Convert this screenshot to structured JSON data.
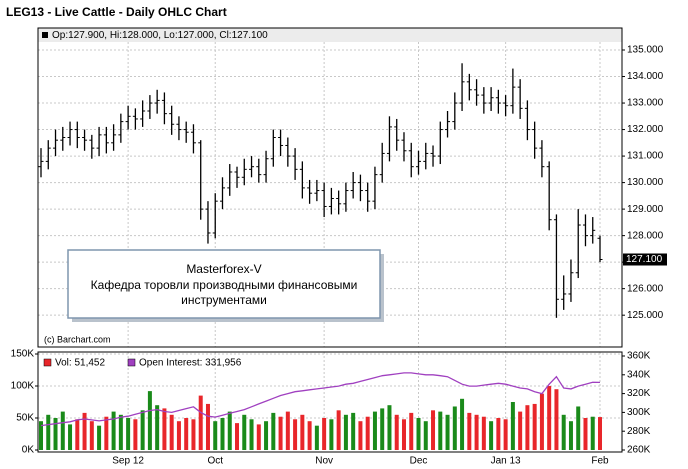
{
  "chart_data": [
    {
      "type": "ohlc",
      "title": "LEG13 - Live Cattle - Daily OHLC Chart",
      "header": "Op:127.900, Hi:128.000, Lo:127.000, Cl:127.100",
      "credit": "(c) Barchart.com",
      "annotation": [
        "Masterforex-V",
        "Кафедра торовли производными финансовыми",
        "инструментами"
      ],
      "color": "#000000",
      "last_label": "127.100",
      "categories": [
        null,
        null,
        null,
        null,
        null,
        null,
        null,
        null,
        null,
        null,
        null,
        null,
        "Sep 12",
        null,
        null,
        null,
        null,
        null,
        null,
        null,
        null,
        null,
        null,
        null,
        "Oct",
        null,
        null,
        null,
        null,
        null,
        null,
        null,
        null,
        null,
        null,
        null,
        null,
        null,
        null,
        "Nov",
        null,
        null,
        null,
        null,
        null,
        null,
        null,
        null,
        null,
        null,
        null,
        null,
        "Dec",
        null,
        null,
        null,
        null,
        null,
        null,
        null,
        null,
        null,
        null,
        null,
        "Jan 13",
        null,
        null,
        null,
        null,
        null,
        null,
        null,
        null,
        null,
        null,
        null,
        null,
        "Feb"
      ],
      "open": [
        130.6,
        130.8,
        131.3,
        131.6,
        131.7,
        132.0,
        131.7,
        131.6,
        131.3,
        131.8,
        131.5,
        131.8,
        132.3,
        132.5,
        132.4,
        132.7,
        133.0,
        133.1,
        132.6,
        132.2,
        132.0,
        131.9,
        131.5,
        129.0,
        128.1,
        129.3,
        129.8,
        130.4,
        130.2,
        130.5,
        130.6,
        130.3,
        130.9,
        131.7,
        131.4,
        131.0,
        130.5,
        129.8,
        129.6,
        129.7,
        129.1,
        129.4,
        129.2,
        129.7,
        130.0,
        129.7,
        129.3,
        130.3,
        131.1,
        132.1,
        131.6,
        131.2,
        130.6,
        130.8,
        131.1,
        131.0,
        132.0,
        132.3,
        133.0,
        133.8,
        133.5,
        133.3,
        133.0,
        133.2,
        133.0,
        132.9,
        133.6,
        132.8,
        132.0,
        131.3,
        130.6,
        128.6,
        125.6,
        125.8,
        126.6,
        128.4,
        128.0,
        127.9
      ],
      "high": [
        131.3,
        131.6,
        132.0,
        132.1,
        132.3,
        132.3,
        132.0,
        131.8,
        132.1,
        132.1,
        132.2,
        132.6,
        132.9,
        132.8,
        133.1,
        133.3,
        133.5,
        133.4,
        132.9,
        132.5,
        132.3,
        132.2,
        131.6,
        129.3,
        129.6,
        130.2,
        130.7,
        130.6,
        130.9,
        131.0,
        130.9,
        131.2,
        132.0,
        132.0,
        131.7,
        131.3,
        130.8,
        130.1,
        130.1,
        130.0,
        129.8,
        129.7,
        130.0,
        130.4,
        130.3,
        130.0,
        130.6,
        131.5,
        132.5,
        132.4,
        131.9,
        131.5,
        131.2,
        131.5,
        131.4,
        132.3,
        132.7,
        133.4,
        134.5,
        134.1,
        133.9,
        133.6,
        133.6,
        133.5,
        133.3,
        134.3,
        133.9,
        133.1,
        132.3,
        131.6,
        130.8,
        128.8,
        126.5,
        127.1,
        129.0,
        128.8,
        128.7,
        128.0
      ],
      "low": [
        130.2,
        130.5,
        131.0,
        131.2,
        131.4,
        131.3,
        131.2,
        130.9,
        131.0,
        131.1,
        131.2,
        131.5,
        132.0,
        132.0,
        132.1,
        132.4,
        132.6,
        132.2,
        131.8,
        131.6,
        131.5,
        131.1,
        128.6,
        127.7,
        127.9,
        129.0,
        129.5,
        129.8,
        129.9,
        130.2,
        130.0,
        130.0,
        130.6,
        131.0,
        130.6,
        130.1,
        129.4,
        129.2,
        129.3,
        128.7,
        128.8,
        128.8,
        128.9,
        129.4,
        129.3,
        128.9,
        129.0,
        130.0,
        130.8,
        131.2,
        130.8,
        130.2,
        130.3,
        130.5,
        130.6,
        130.7,
        131.7,
        132.0,
        132.7,
        133.1,
        132.9,
        132.6,
        132.7,
        132.6,
        132.5,
        132.6,
        132.4,
        131.6,
        130.9,
        130.2,
        128.2,
        124.9,
        125.2,
        125.5,
        126.4,
        127.6,
        127.7,
        127.0
      ],
      "close": [
        130.8,
        131.3,
        131.6,
        131.7,
        132.0,
        131.7,
        131.6,
        131.3,
        131.8,
        131.5,
        131.8,
        132.3,
        132.5,
        132.4,
        132.7,
        133.0,
        133.1,
        132.6,
        132.2,
        132.0,
        131.9,
        131.5,
        129.0,
        128.1,
        129.3,
        129.8,
        130.4,
        130.2,
        130.5,
        130.6,
        130.3,
        130.9,
        131.7,
        131.4,
        131.0,
        130.5,
        129.8,
        129.6,
        129.7,
        129.1,
        129.4,
        129.2,
        129.7,
        130.0,
        129.7,
        129.3,
        130.3,
        131.1,
        132.1,
        131.6,
        131.2,
        130.6,
        130.8,
        131.1,
        131.0,
        132.0,
        132.3,
        133.0,
        133.8,
        133.5,
        133.3,
        133.0,
        133.2,
        133.0,
        132.9,
        133.6,
        132.8,
        132.0,
        131.3,
        130.6,
        128.6,
        125.6,
        125.8,
        126.6,
        128.4,
        128.0,
        128.2,
        127.1
      ],
      "ylim": [
        123.8,
        135.83
      ],
      "yticks": [
        {
          "value": 125,
          "label": "125.000"
        },
        {
          "value": 126,
          "label": "126.000"
        },
        {
          "value": 127,
          "label": "127.000"
        },
        {
          "value": 128,
          "label": "128.000"
        },
        {
          "value": 129,
          "label": "129.000"
        },
        {
          "value": 130,
          "label": "130.000"
        },
        {
          "value": 131,
          "label": "131.000"
        },
        {
          "value": 132,
          "label": "132.000"
        },
        {
          "value": 133,
          "label": "133.000"
        },
        {
          "value": 134,
          "label": "134.000"
        },
        {
          "value": 135,
          "label": "135.000"
        }
      ],
      "grid": true
    },
    {
      "type": "volume",
      "up_color": "#1a8a1a",
      "down_color": "#e8262a",
      "series": [
        {
          "name": "Vol: 51,452",
          "color": "#e8262a",
          "values": [
            45000,
            55000,
            50000,
            60000,
            40000,
            48000,
            58000,
            45000,
            38000,
            52000,
            60000,
            55000,
            50000,
            48000,
            62000,
            92000,
            70000,
            65000,
            55000,
            45000,
            50000,
            48000,
            85000,
            72000,
            45000,
            50000,
            60000,
            42000,
            55000,
            48000,
            40000,
            45000,
            58000,
            52000,
            60000,
            48000,
            55000,
            45000,
            38000,
            50000,
            48000,
            62000,
            55000,
            58000,
            45000,
            52000,
            60000,
            65000,
            70000,
            55000,
            48000,
            58000,
            50000,
            45000,
            62000,
            60000,
            55000,
            68000,
            80000,
            58000,
            55000,
            52000,
            45000,
            50000,
            48000,
            75000,
            60000,
            70000,
            72000,
            88000,
            100000,
            95000,
            55000,
            45000,
            68000,
            50000,
            52000,
            51452
          ]
        },
        {
          "name": "Open Interest: 331,956",
          "color": "#a040c0",
          "axis": "y2",
          "values": [
            286000,
            287000,
            288000,
            289000,
            290000,
            292000,
            293000,
            292000,
            291000,
            292000,
            293000,
            295000,
            296000,
            298000,
            300000,
            302000,
            303000,
            301000,
            300000,
            302000,
            304000,
            306000,
            300000,
            296000,
            295000,
            297000,
            299000,
            301000,
            303000,
            306000,
            309000,
            312000,
            315000,
            318000,
            320000,
            322000,
            323000,
            324000,
            325000,
            326000,
            327000,
            328000,
            330000,
            331000,
            333000,
            335000,
            337000,
            339000,
            340000,
            341000,
            342000,
            342000,
            341000,
            340000,
            340000,
            339000,
            338000,
            334000,
            330000,
            328000,
            328000,
            329000,
            330000,
            331000,
            330000,
            328000,
            326000,
            325000,
            322000,
            320000,
            330000,
            338000,
            326000,
            325000,
            328000,
            330000,
            332000,
            331956
          ]
        }
      ],
      "ylim": [
        0,
        150000
      ],
      "yticks": [
        {
          "value": 0,
          "label": "0K"
        },
        {
          "value": 50000,
          "label": "50K"
        },
        {
          "value": 100000,
          "label": "100K"
        },
        {
          "value": 150000,
          "label": "150K"
        }
      ],
      "y2lim": [
        260000,
        360000
      ],
      "y2ticks": [
        {
          "value": 260000,
          "label": "260K"
        },
        {
          "value": 280000,
          "label": "280K"
        },
        {
          "value": 300000,
          "label": "300K"
        },
        {
          "value": 320000,
          "label": "320K"
        },
        {
          "value": 340000,
          "label": "340K"
        },
        {
          "value": 360000,
          "label": "360K"
        }
      ],
      "grid": true
    }
  ]
}
